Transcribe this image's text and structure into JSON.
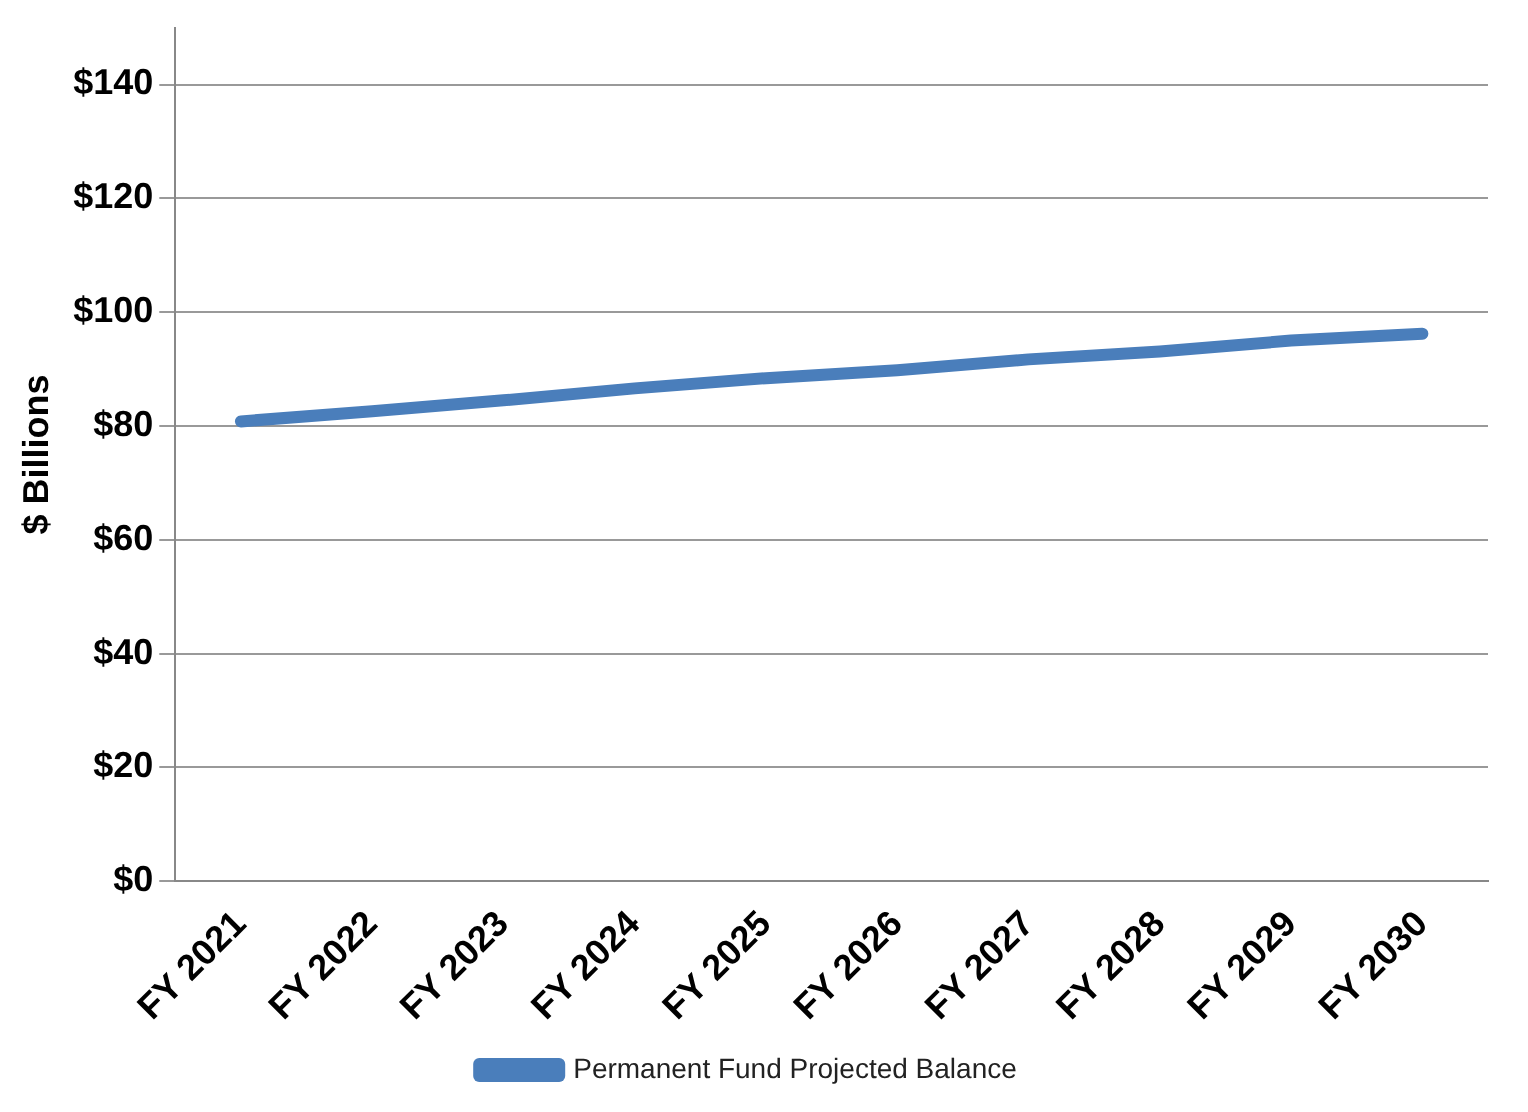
{
  "chart_data": {
    "type": "line",
    "ylabel": "$ Billions",
    "categories": [
      "FY 2021",
      "FY 2022",
      "FY 2023",
      "FY 2024",
      "FY 2025",
      "FY 2026",
      "FY 2027",
      "FY 2028",
      "FY 2029",
      "FY 2030"
    ],
    "series": [
      {
        "name": "Permanent Fund Projected Balance",
        "color": "#4a7ebb",
        "values": [
          80.8,
          82.6,
          84.5,
          86.6,
          88.4,
          89.8,
          91.7,
          93.1,
          95.0,
          96.2
        ]
      }
    ],
    "ylim": [
      0,
      150
    ],
    "yticks": [
      {
        "value": 0,
        "label": "$0"
      },
      {
        "value": 20,
        "label": "$20"
      },
      {
        "value": 40,
        "label": "$40"
      },
      {
        "value": 60,
        "label": "$60"
      },
      {
        "value": 80,
        "label": "$80"
      },
      {
        "value": 100,
        "label": "$100"
      },
      {
        "value": 120,
        "label": "$120"
      },
      {
        "value": 140,
        "label": "$140"
      }
    ],
    "grid": "y",
    "legend": "bottom",
    "marker": "none",
    "line_style": "solid"
  }
}
